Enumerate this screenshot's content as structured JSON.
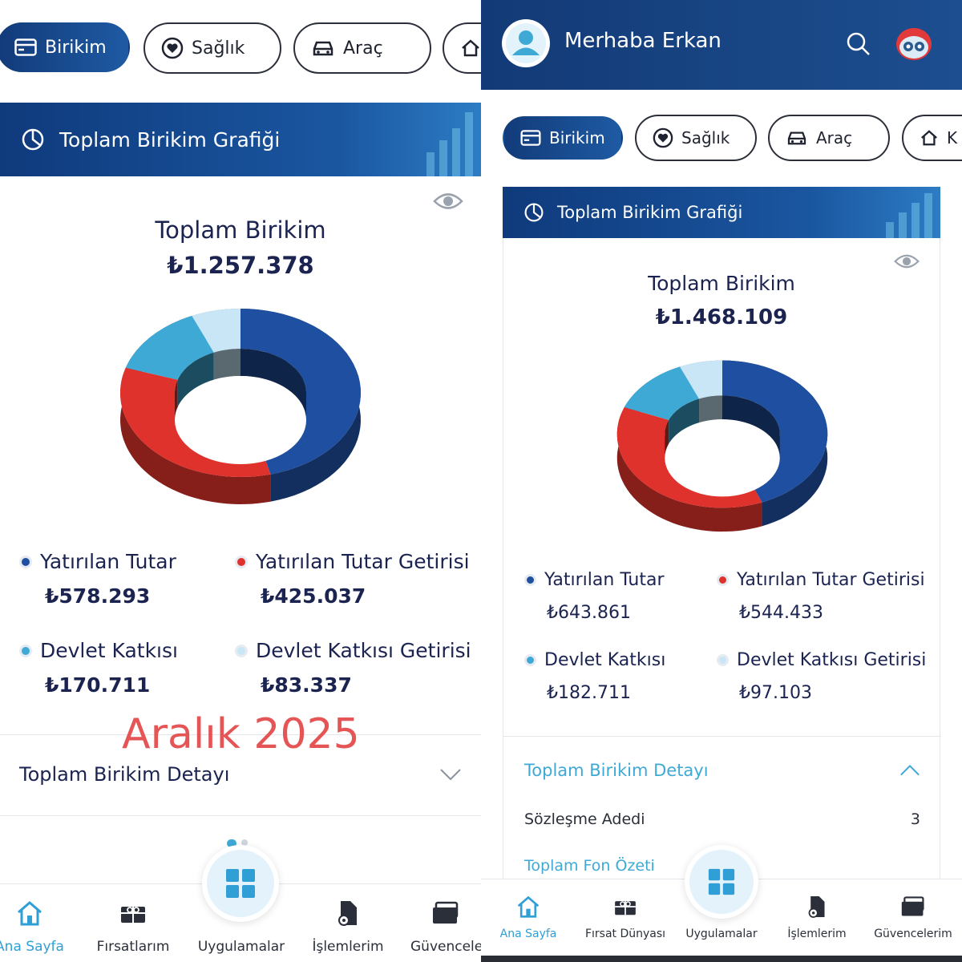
{
  "left": {
    "chips": [
      "Birikim",
      "Sağlık",
      "Araç"
    ],
    "banner_title": "Toplam Birikim Grafiği",
    "total_label": "Toplam Birikim",
    "total_value": "₺1.257.378",
    "legend": [
      {
        "label": "Yatırılan Tutar",
        "value": "₺578.293",
        "color": "#1f4fa0"
      },
      {
        "label": "Yatırılan Tutar Getirisi",
        "value": "₺425.037",
        "color": "#e0322c"
      },
      {
        "label": "Devlet Katkısı",
        "value": "₺170.711",
        "color": "#3fa9d6"
      },
      {
        "label": "Devlet Katkısı Getirisi",
        "value": "₺83.337",
        "color": "#c9e6f7"
      }
    ],
    "overlay_text": "Aralık 2025",
    "detail_title": "Toplam Birikim Detayı",
    "nav": [
      "Ana Sayfa",
      "Fırsatlarım",
      "Uygulamalar",
      "İşlemlerim",
      "Güvencele"
    ]
  },
  "right": {
    "greeting": "Merhaba Erkan",
    "chips": [
      "Birikim",
      "Sağlık",
      "Araç",
      "K"
    ],
    "banner_title": "Toplam Birikim Grafiği",
    "total_label": "Toplam Birikim",
    "total_value": "₺1.468.109",
    "legend": [
      {
        "label": "Yatırılan Tutar",
        "value": "₺643.861",
        "color": "#1f4fa0"
      },
      {
        "label": "Yatırılan Tutar Getirisi",
        "value": "₺544.433",
        "color": "#e0322c"
      },
      {
        "label": "Devlet Katkısı",
        "value": "₺182.711",
        "color": "#3fa9d6"
      },
      {
        "label": "Devlet Katkısı Getirisi",
        "value": "₺97.103",
        "color": "#c9e6f7"
      }
    ],
    "detail_title": "Toplam Birikim Detayı",
    "contract_label": "Sözleşme Adedi",
    "contract_value": "3",
    "fund_summary": "Toplam Fon Özeti",
    "nav": [
      "Ana Sayfa",
      "Fırsat Dünyası",
      "Uygulamalar",
      "İşlemlerim",
      "Güvencelerim"
    ]
  }
}
